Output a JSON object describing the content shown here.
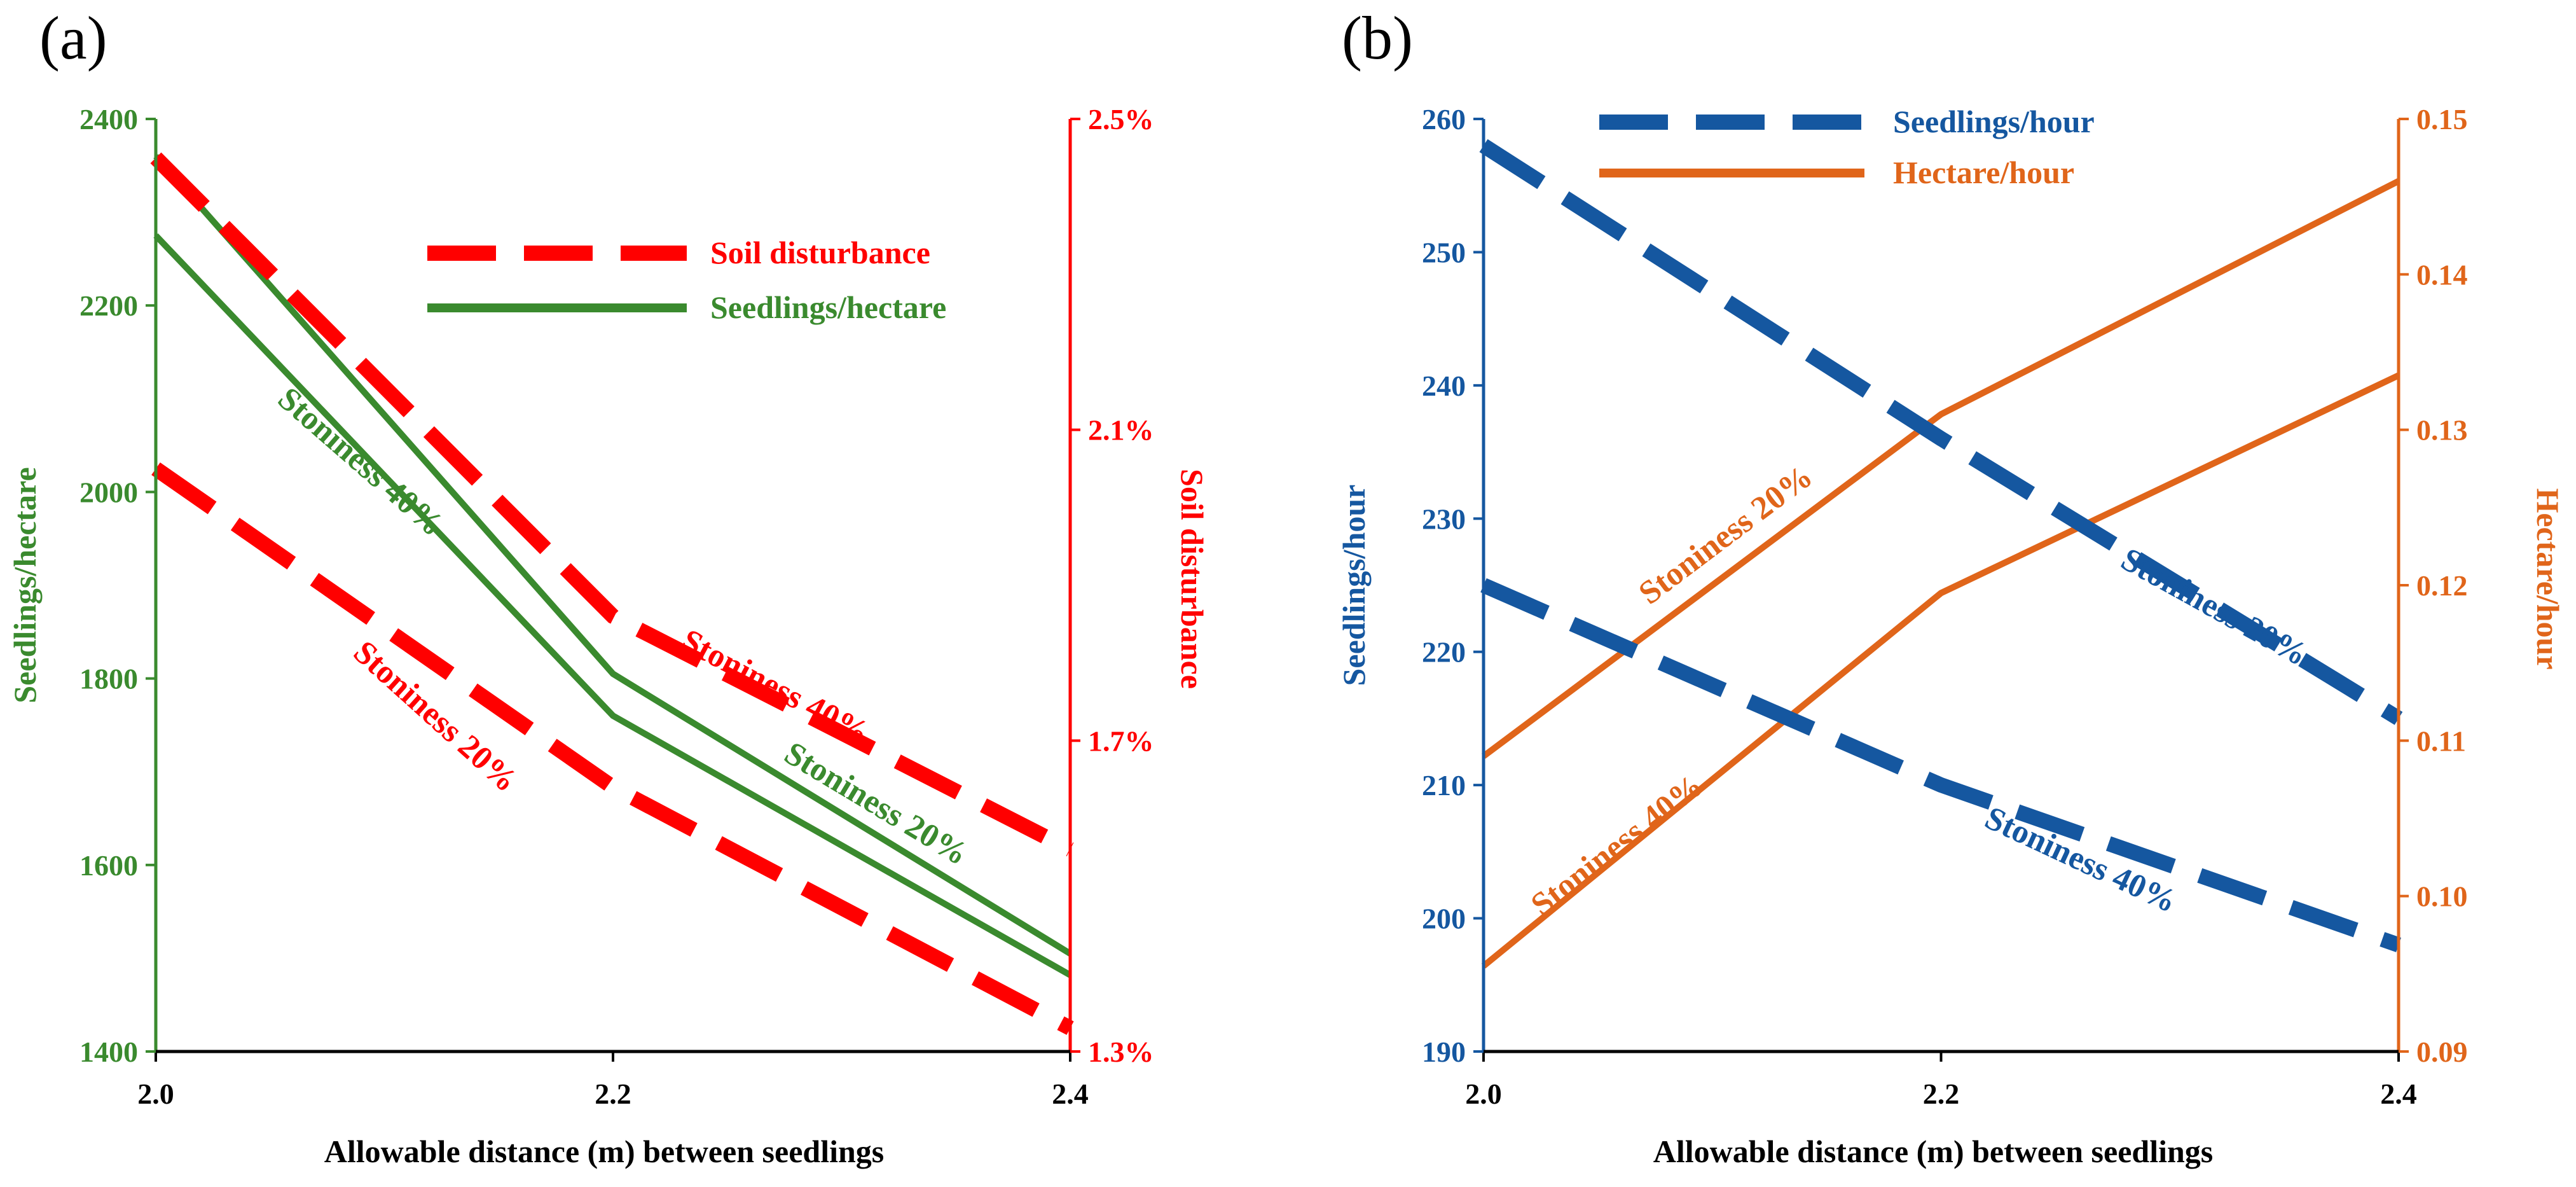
{
  "colors": {
    "green": "#3a8a2e",
    "red": "#ff0000",
    "blue": "#1557a0",
    "orange": "#e0651a",
    "black": "#000000"
  },
  "panels": {
    "a": {
      "label": "(a)"
    },
    "b": {
      "label": "(b)"
    }
  },
  "chart_data": [
    {
      "type": "line",
      "panel": "a",
      "xlabel": "Allowable distance (m) between seedlings",
      "x": [
        2.0,
        2.2,
        2.4
      ],
      "x_ticks": [
        "2.0",
        "2.2",
        "2.4"
      ],
      "ylabel_left": "Seedlings/hectare",
      "ylim_left": [
        1400,
        2400
      ],
      "y_ticks_left": [
        "1400",
        "1600",
        "1800",
        "2000",
        "2200",
        "2400"
      ],
      "ylabel_right": "Soil disturbance",
      "ylim_right": [
        1.3,
        2.5
      ],
      "y_ticks_right": [
        "1.3%",
        "1.7%",
        "2.1%",
        "2.5%"
      ],
      "legend": [
        {
          "label": "Soil disturbance",
          "style": "dashed",
          "color": "#ff0000"
        },
        {
          "label": "Seedlings/hectare",
          "style": "solid",
          "color": "#3a8a2e"
        }
      ],
      "legend_position": "top-right",
      "series": [
        {
          "measure": "Seedlings/hectare",
          "axis": "left",
          "style": "solid",
          "color": "#3a8a2e",
          "annotation": "Stoniness 20%",
          "values": [
            2360,
            1805,
            1505
          ]
        },
        {
          "measure": "Seedlings/hectare",
          "axis": "left",
          "style": "solid",
          "color": "#3a8a2e",
          "annotation": "Stoniness 40%",
          "values": [
            2275,
            1760,
            1482
          ]
        },
        {
          "measure": "Soil disturbance",
          "axis": "right",
          "style": "dashed",
          "color": "#ff0000",
          "annotation": "Stoniness 40%",
          "values": [
            2.45,
            1.86,
            1.56
          ]
        },
        {
          "measure": "Soil disturbance",
          "axis": "right",
          "style": "dashed",
          "color": "#ff0000",
          "annotation": "Stoniness 20%",
          "values": [
            2.05,
            1.64,
            1.33
          ]
        }
      ],
      "grid": false
    },
    {
      "type": "line",
      "panel": "b",
      "xlabel": "Allowable distance (m) between seedlings",
      "x": [
        2.0,
        2.2,
        2.4
      ],
      "x_ticks": [
        "2.0",
        "2.2",
        "2.4"
      ],
      "ylabel_left": "Seedlings/hour",
      "ylim_left": [
        190,
        260
      ],
      "y_ticks_left": [
        "190",
        "200",
        "210",
        "220",
        "230",
        "240",
        "250",
        "260"
      ],
      "ylabel_right": "Hectare/hour",
      "ylim_right": [
        0.09,
        0.15
      ],
      "y_ticks_right": [
        "0.09",
        "0.10",
        "0.11",
        "0.12",
        "0.13",
        "0.14",
        "0.15"
      ],
      "legend": [
        {
          "label": "Seedlings/hour",
          "style": "dashed",
          "color": "#1557a0"
        },
        {
          "label": "Hectare/hour",
          "style": "solid",
          "color": "#e0651a"
        }
      ],
      "legend_position": "top-center",
      "series": [
        {
          "measure": "Seedlings/hour",
          "axis": "left",
          "style": "dashed",
          "color": "#1557a0",
          "annotation": "Stoniness 20%",
          "values": [
            258,
            236,
            215
          ]
        },
        {
          "measure": "Seedlings/hour",
          "axis": "left",
          "style": "dashed",
          "color": "#1557a0",
          "annotation": "Stoniness 40%",
          "values": [
            225,
            210,
            198
          ]
        },
        {
          "measure": "Hectare/hour",
          "axis": "right",
          "style": "solid",
          "color": "#e0651a",
          "annotation": "Stoniness 20%",
          "values": [
            0.109,
            0.131,
            0.146
          ]
        },
        {
          "measure": "Hectare/hour",
          "axis": "right",
          "style": "solid",
          "color": "#e0651a",
          "annotation": "Stoniness 40%",
          "values": [
            0.0955,
            0.1195,
            0.1335
          ]
        }
      ],
      "grid": false
    }
  ]
}
